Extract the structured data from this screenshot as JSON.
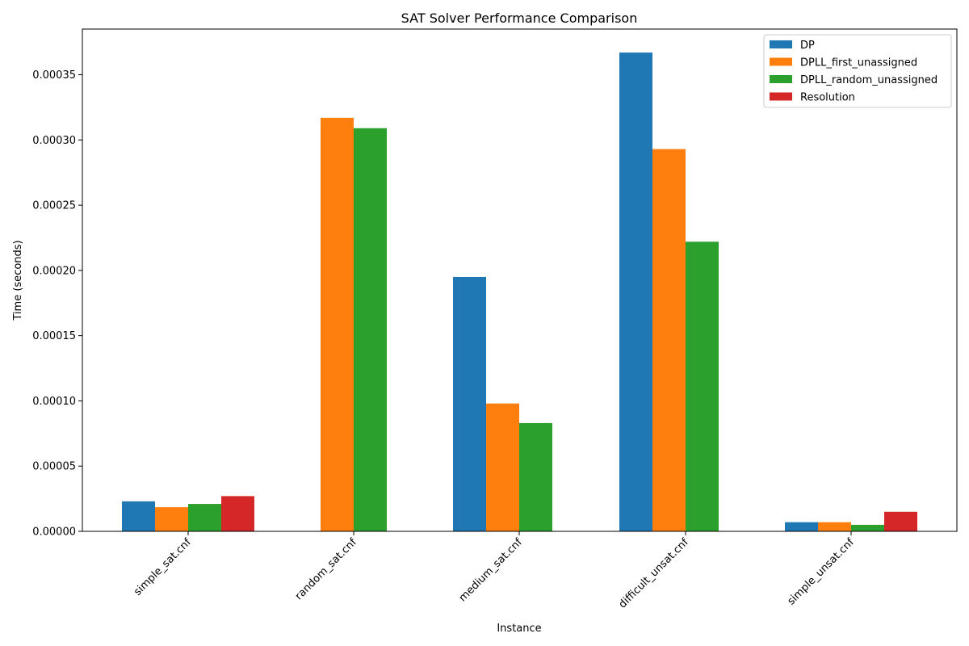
{
  "chart_data": {
    "type": "bar",
    "title": "SAT Solver Performance Comparison",
    "xlabel": "Instance",
    "ylabel": "Time (seconds)",
    "categories": [
      "simple_sat.cnf",
      "random_sat.cnf",
      "medium_sat.cnf",
      "difficult_unsat.cnf",
      "simple_unsat.cnf"
    ],
    "series": [
      {
        "name": "DP",
        "color": "#1f77b4",
        "values": [
          2.3e-05,
          0,
          0.000195,
          0.000367,
          7e-06
        ]
      },
      {
        "name": "DPLL_first_unassigned",
        "color": "#ff7f0e",
        "values": [
          1.85e-05,
          0.000317,
          9.8e-05,
          0.000293,
          7e-06
        ]
      },
      {
        "name": "DPLL_random_unassigned",
        "color": "#2ca02c",
        "values": [
          2.1e-05,
          0.000309,
          8.3e-05,
          0.000222,
          5e-06
        ]
      },
      {
        "name": "Resolution",
        "color": "#d62728",
        "values": [
          2.7e-05,
          0,
          0,
          0,
          1.5e-05
        ]
      }
    ],
    "ylim": [
      0,
      0.000385
    ],
    "yticks": [
      "0.00000",
      "0.00005",
      "0.00010",
      "0.00015",
      "0.00020",
      "0.00025",
      "0.00030",
      "0.00035"
    ],
    "ytick_values": [
      0,
      5e-05,
      0.0001,
      0.00015,
      0.0002,
      0.00025,
      0.0003,
      0.00035
    ],
    "xtick_rotation_deg": 45,
    "grid": false,
    "legend_position": "top-right"
  }
}
